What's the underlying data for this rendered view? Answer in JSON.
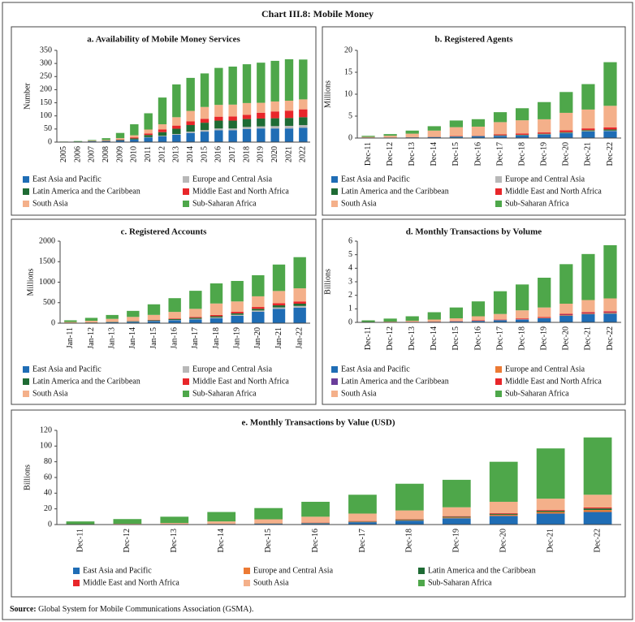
{
  "title": "Chart III.8: Mobile Money",
  "source_label": "Source:",
  "source": "Global System for Mobile Communications Association (GSMA).",
  "chart_data": [
    {
      "type": "stacked-bar",
      "title": "a. Availability of Mobile Money Services",
      "y_label": "Number",
      "categories": [
        "2005",
        "2006",
        "2007",
        "2008",
        "2009",
        "2010",
        "2011",
        "2012",
        "2013",
        "2014",
        "2015",
        "2016",
        "2017",
        "2018",
        "2019",
        "2020",
        "2021",
        "2022"
      ],
      "ylim": [
        0,
        350
      ],
      "yticks": [
        0,
        50,
        100,
        150,
        200,
        250,
        300,
        350
      ],
      "series": [
        {
          "name": "East Asia and Pacific",
          "color": "#1f6db5",
          "values": [
            1,
            2,
            3,
            4,
            6,
            10,
            18,
            22,
            28,
            35,
            40,
            45,
            45,
            50,
            52,
            52,
            52,
            55
          ]
        },
        {
          "name": "Europe and Central Asia",
          "color": "#b8b8b8",
          "values": [
            0,
            0,
            0,
            0,
            0,
            0,
            1,
            2,
            3,
            5,
            6,
            7,
            7,
            8,
            8,
            9,
            10,
            10
          ]
        },
        {
          "name": "Latin America and the Caribbean",
          "color": "#1e6b34",
          "values": [
            0,
            0,
            0,
            1,
            2,
            4,
            8,
            14,
            20,
            25,
            28,
            30,
            30,
            30,
            30,
            30,
            30,
            30
          ]
        },
        {
          "name": "Middle East and North Africa",
          "color": "#e8262a",
          "values": [
            0,
            0,
            1,
            1,
            2,
            4,
            6,
            10,
            12,
            14,
            15,
            15,
            16,
            16,
            22,
            26,
            28,
            30
          ]
        },
        {
          "name": "South Asia",
          "color": "#f4b08a",
          "values": [
            0,
            0,
            1,
            2,
            5,
            8,
            15,
            20,
            32,
            40,
            45,
            45,
            45,
            45,
            38,
            38,
            38,
            38
          ]
        },
        {
          "name": "Sub-Saharan Africa",
          "color": "#4ea74a",
          "values": [
            1,
            2,
            3,
            7,
            20,
            42,
            62,
            102,
            125,
            126,
            128,
            141,
            145,
            148,
            153,
            155,
            158,
            152
          ]
        }
      ]
    },
    {
      "type": "stacked-bar",
      "title": "b. Registered Agents",
      "y_label": "Millions",
      "categories": [
        "Dec-11",
        "Dec-12",
        "Dec-13",
        "Dec-14",
        "Dec-15",
        "Dec-16",
        "Dec-17",
        "Dec-18",
        "Dec-19",
        "Dec-20",
        "Dec-21",
        "Dec-22"
      ],
      "ylim": [
        0,
        20
      ],
      "yticks": [
        0,
        5,
        10,
        15,
        20
      ],
      "series": [
        {
          "name": "East Asia and Pacific",
          "color": "#1f6db5",
          "values": [
            0.05,
            0.1,
            0.15,
            0.2,
            0.3,
            0.4,
            0.5,
            0.6,
            0.8,
            1.1,
            1.5,
            1.6
          ]
        },
        {
          "name": "Europe and Central Asia",
          "color": "#b8b8b8",
          "values": [
            0,
            0,
            0,
            0.02,
            0.03,
            0.04,
            0.05,
            0.05,
            0.06,
            0.1,
            0.1,
            0.1
          ]
        },
        {
          "name": "Latin America and the Caribbean",
          "color": "#1e6b34",
          "values": [
            0,
            0.01,
            0.02,
            0.03,
            0.05,
            0.06,
            0.08,
            0.1,
            0.12,
            0.15,
            0.2,
            0.25
          ]
        },
        {
          "name": "Middle East and North Africa",
          "color": "#e8262a",
          "values": [
            0.01,
            0.02,
            0.03,
            0.05,
            0.1,
            0.1,
            0.2,
            0.3,
            0.3,
            0.4,
            0.4,
            0.5
          ]
        },
        {
          "name": "South Asia",
          "color": "#f4b08a",
          "values": [
            0.2,
            0.4,
            0.8,
            1.4,
            2,
            2,
            2.8,
            3,
            3,
            4,
            4.3,
            4.9
          ]
        },
        {
          "name": "Sub-Saharan Africa",
          "color": "#4ea74a",
          "values": [
            0.24,
            0.37,
            0.7,
            1,
            1.52,
            1.7,
            2.27,
            2.75,
            3.92,
            4.75,
            5.8,
            9.95
          ]
        }
      ]
    },
    {
      "type": "stacked-bar",
      "title": "c. Registered Accounts",
      "y_label": "Millions",
      "categories": [
        "Jan-11",
        "Jan-12",
        "Jan-13",
        "Jan-14",
        "Jan-15",
        "Jan-16",
        "Jan-17",
        "Jan-18",
        "Jan-19",
        "Jan-20",
        "Jan-21",
        "Jan-22"
      ],
      "ylim": [
        0,
        2000
      ],
      "yticks": [
        0,
        500,
        1000,
        1500,
        2000
      ],
      "series": [
        {
          "name": "East Asia and Pacific",
          "color": "#1f6db5",
          "values": [
            5,
            10,
            20,
            30,
            50,
            70,
            90,
            120,
            180,
            280,
            350,
            380
          ]
        },
        {
          "name": "Europe and Central Asia",
          "color": "#b8b8b8",
          "values": [
            1,
            2,
            3,
            5,
            7,
            10,
            15,
            20,
            25,
            30,
            35,
            40
          ]
        },
        {
          "name": "Latin America and the Caribbean",
          "color": "#1e6b34",
          "values": [
            2,
            5,
            8,
            12,
            15,
            20,
            25,
            30,
            35,
            40,
            50,
            55
          ]
        },
        {
          "name": "Middle East and North Africa",
          "color": "#e8262a",
          "values": [
            1,
            2,
            4,
            6,
            10,
            15,
            20,
            30,
            40,
            45,
            50,
            55
          ]
        },
        {
          "name": "South Asia",
          "color": "#f4b08a",
          "values": [
            20,
            40,
            70,
            100,
            120,
            160,
            200,
            280,
            250,
            260,
            300,
            320
          ]
        },
        {
          "name": "Sub-Saharan Africa",
          "color": "#4ea74a",
          "values": [
            41,
            71,
            95,
            147,
            258,
            335,
            440,
            490,
            500,
            515,
            645,
            760
          ]
        }
      ]
    },
    {
      "type": "stacked-bar",
      "title": "d. Monthly Transactions by Volume",
      "y_label": "Billions",
      "categories": [
        "Dec-11",
        "Dec-12",
        "Dec-13",
        "Dec-14",
        "Dec-15",
        "Dec-16",
        "Dec-17",
        "Dec-18",
        "Dec-19",
        "Dec-20",
        "Dec-21",
        "Dec-22"
      ],
      "ylim": [
        0,
        6
      ],
      "yticks": [
        0,
        1,
        2,
        3,
        4,
        5,
        6
      ],
      "series": [
        {
          "name": "East Asia and Pacific",
          "color": "#1f6db5",
          "values": [
            0.01,
            0.02,
            0.03,
            0.04,
            0.06,
            0.1,
            0.15,
            0.2,
            0.3,
            0.5,
            0.6,
            0.65
          ]
        },
        {
          "name": "Europe and Central Asia",
          "color": "#ec7a34",
          "values": [
            0,
            0,
            0,
            0.005,
            0.01,
            0.01,
            0.02,
            0.02,
            0.03,
            0.04,
            0.05,
            0.06
          ]
        },
        {
          "name": "Latin America and the Caribbean",
          "color": "#6a3d9a",
          "values": [
            0,
            0,
            0,
            0.005,
            0.01,
            0.01,
            0.02,
            0.02,
            0.02,
            0.03,
            0.04,
            0.04
          ]
        },
        {
          "name": "Middle East and North Africa",
          "color": "#e8262a",
          "values": [
            0,
            0,
            0.01,
            0.01,
            0.02,
            0.03,
            0.03,
            0.05,
            0.05,
            0.06,
            0.06,
            0.07
          ]
        },
        {
          "name": "South Asia",
          "color": "#f4b08a",
          "values": [
            0.02,
            0.04,
            0.08,
            0.15,
            0.2,
            0.3,
            0.4,
            0.6,
            0.7,
            0.75,
            0.9,
            0.95
          ]
        },
        {
          "name": "Sub-Saharan Africa",
          "color": "#4ea74a",
          "values": [
            0.12,
            0.22,
            0.33,
            0.54,
            0.8,
            1.1,
            1.68,
            1.91,
            2.2,
            2.92,
            3.4,
            3.93
          ]
        }
      ]
    },
    {
      "type": "stacked-bar",
      "title": "e. Monthly Transactions by Value (USD)",
      "y_label": "Billions",
      "categories": [
        "Dec-11",
        "Dec-12",
        "Dec-13",
        "Dec-14",
        "Dec-15",
        "Dec-16",
        "Dec-17",
        "Dec-18",
        "Dec-19",
        "Dec-20",
        "Dec-21",
        "Dec-22"
      ],
      "ylim": [
        0,
        120
      ],
      "yticks": [
        0,
        20,
        40,
        60,
        80,
        100,
        120
      ],
      "series": [
        {
          "name": "East Asia and Pacific",
          "color": "#1f6db5",
          "values": [
            0.2,
            0.3,
            0.5,
            0.8,
            1,
            1.5,
            3,
            5,
            8,
            11,
            14,
            16
          ]
        },
        {
          "name": "Europe and Central Asia",
          "color": "#ec7a34",
          "values": [
            0,
            0,
            0.1,
            0.2,
            0.3,
            0.4,
            0.5,
            0.7,
            1,
            1.5,
            2,
            2.5
          ]
        },
        {
          "name": "Latin America and the Caribbean",
          "color": "#1e6b34",
          "values": [
            0,
            0,
            0,
            0.1,
            0.2,
            0.3,
            0.5,
            0.8,
            1,
            1.2,
            1.5,
            2
          ]
        },
        {
          "name": "Middle East and North Africa",
          "color": "#e8262a",
          "values": [
            0,
            0,
            0.1,
            0.1,
            0.2,
            0.3,
            0.5,
            0.5,
            0.7,
            0.8,
            1,
            1.2
          ]
        },
        {
          "name": "South Asia",
          "color": "#f4b08a",
          "values": [
            0.3,
            0.7,
            1.3,
            2.8,
            5,
            7.5,
            9.5,
            11,
            11.3,
            14.5,
            14.5,
            16.3
          ]
        },
        {
          "name": "Sub-Saharan Africa",
          "color": "#4ea74a",
          "values": [
            3.5,
            6,
            8,
            12,
            14.3,
            19,
            24,
            34,
            35,
            51,
            64,
            73
          ]
        }
      ]
    }
  ]
}
